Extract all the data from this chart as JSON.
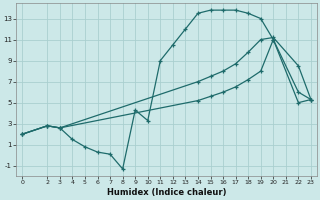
{
  "xlabel": "Humidex (Indice chaleur)",
  "ylabel": "",
  "bg_color": "#cce8e8",
  "grid_color": "#aacfcf",
  "line_color": "#1e6b6b",
  "xlim": [
    -0.5,
    23.5
  ],
  "ylim": [
    -2,
    14.5
  ],
  "yticks": [
    -1,
    1,
    3,
    5,
    7,
    9,
    11,
    13
  ],
  "xticks": [
    0,
    2,
    3,
    4,
    5,
    6,
    7,
    8,
    9,
    10,
    11,
    12,
    13,
    14,
    15,
    16,
    17,
    18,
    19,
    20,
    21,
    22,
    23
  ],
  "curve1_x": [
    0,
    2,
    3,
    4,
    5,
    6,
    7,
    8,
    9,
    10,
    11,
    12,
    13,
    14,
    15,
    16,
    17,
    18,
    19,
    20,
    22,
    23
  ],
  "curve1_y": [
    2,
    2.8,
    2.6,
    1.5,
    0.8,
    0.3,
    0.1,
    -1.3,
    4.3,
    3.3,
    9.0,
    10.5,
    12.0,
    13.5,
    13.8,
    13.8,
    13.8,
    13.5,
    13.0,
    11.0,
    6.0,
    5.3
  ],
  "curve2_x": [
    0,
    2,
    3,
    14,
    15,
    16,
    17,
    18,
    19,
    20,
    22,
    23
  ],
  "curve2_y": [
    2,
    2.8,
    2.6,
    7.0,
    7.5,
    8.0,
    8.7,
    9.8,
    11.0,
    11.2,
    8.5,
    5.3
  ],
  "curve3_x": [
    0,
    2,
    3,
    14,
    15,
    16,
    17,
    18,
    19,
    20,
    22,
    23
  ],
  "curve3_y": [
    2,
    2.8,
    2.6,
    5.2,
    5.6,
    6.0,
    6.5,
    7.2,
    8.0,
    11.0,
    5.0,
    5.3
  ]
}
